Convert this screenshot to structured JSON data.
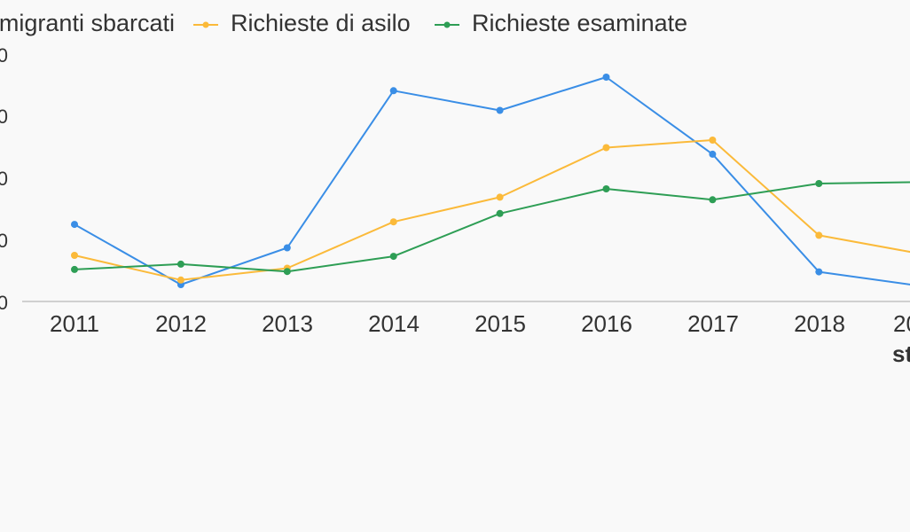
{
  "chart_data": {
    "type": "line",
    "categories": [
      "2011",
      "2012",
      "2013",
      "2014",
      "2015",
      "2016",
      "2017",
      "2018",
      "20"
    ],
    "y_tick_labels": [
      "0",
      "0",
      "0",
      "0",
      "0"
    ],
    "bottom_right_note": "st",
    "series": [
      {
        "name": "migranti sbarcati",
        "color": "#3a8ee6",
        "values": [
          62.5,
          13.7,
          43.5,
          171.0,
          155.0,
          182.0,
          119.5,
          24.0,
          12.0
        ]
      },
      {
        "name": "Richieste di asilo",
        "color": "#fbba3a",
        "values": [
          37.4,
          17.4,
          27.0,
          64.6,
          84.6,
          124.8,
          130.9,
          53.7,
          38.0
        ]
      },
      {
        "name": "Richieste esaminate",
        "color": "#2e9e55",
        "values": [
          26.0,
          30.3,
          24.3,
          36.6,
          71.4,
          91.4,
          82.5,
          95.7,
          97.0
        ]
      }
    ],
    "ylim": [
      0,
      200
    ],
    "grid": false,
    "legend_position": "top"
  }
}
